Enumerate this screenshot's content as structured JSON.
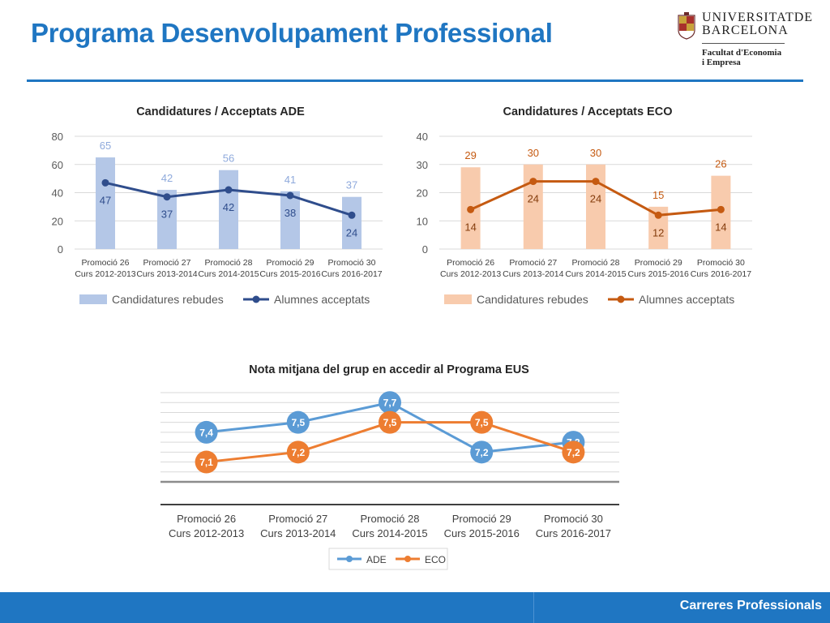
{
  "header": {
    "title": "Programa Desenvolupament Professional",
    "logo_line1": "UNIVERSITATDE",
    "logo_line2": "BARCELONA",
    "faculty_line1": "Facultat d'Economia",
    "faculty_line2": "i Empresa"
  },
  "footer": {
    "label": "Carreres Professionals"
  },
  "colors": {
    "brand": "#1f76c2",
    "ade_bar": "#b4c7e7",
    "ade_line": "#2f4d8c",
    "eco_bar": "#f8cbad",
    "eco_line": "#c55a11",
    "eus_ade": "#5b9bd5",
    "eus_eco": "#ed7d31"
  },
  "chart_data": [
    {
      "id": "ade",
      "type": "bar",
      "title": "Candidatures / Acceptats ADE",
      "categories": [
        [
          "Promoció 26",
          "Curs 2012-2013"
        ],
        [
          "Promoció 27",
          "Curs 2013-2014"
        ],
        [
          "Promoció 28",
          "Curs 2014-2015"
        ],
        [
          "Promoció 29",
          "Curs 2015-2016"
        ],
        [
          "Promoció 30",
          "Curs 2016-2017"
        ]
      ],
      "ylim": [
        0,
        80
      ],
      "yticks": [
        0,
        20,
        40,
        60,
        80
      ],
      "grid": true,
      "legend": "bottom",
      "series": [
        {
          "name": "Candidatures rebudes",
          "type": "bar",
          "values": [
            65,
            42,
            56,
            41,
            37
          ]
        },
        {
          "name": "Alumnes acceptats",
          "type": "line",
          "values": [
            47,
            37,
            42,
            38,
            24
          ]
        }
      ]
    },
    {
      "id": "eco",
      "type": "bar",
      "title": "Candidatures / Acceptats ECO",
      "categories": [
        [
          "Promoció 26",
          "Curs 2012-2013"
        ],
        [
          "Promoció 27",
          "Curs 2013-2014"
        ],
        [
          "Promoció 28",
          "Curs 2014-2015"
        ],
        [
          "Promoció 29",
          "Curs 2015-2016"
        ],
        [
          "Promoció 30",
          "Curs 2016-2017"
        ]
      ],
      "ylim": [
        0,
        40
      ],
      "yticks": [
        0,
        10,
        20,
        30,
        40
      ],
      "grid": true,
      "legend": "bottom",
      "series": [
        {
          "name": "Candidatures rebudes",
          "type": "bar",
          "values": [
            29,
            30,
            30,
            15,
            26
          ]
        },
        {
          "name": "Alumnes acceptats",
          "type": "line",
          "values": [
            14,
            24,
            24,
            12,
            14
          ]
        }
      ]
    },
    {
      "id": "eus",
      "type": "line",
      "title": "Nota mitjana del grup en accedir al Programa EUS",
      "categories": [
        [
          "Promoció 26",
          "Curs 2012-2013"
        ],
        [
          "Promoció 27",
          "Curs 2013-2014"
        ],
        [
          "Promoció 28",
          "Curs 2014-2015"
        ],
        [
          "Promoció 29",
          "Curs 2015-2016"
        ],
        [
          "Promoció 30",
          "Curs 2016-2017"
        ]
      ],
      "ylim": [
        6.9,
        7.8
      ],
      "grid": true,
      "legend": "bottom",
      "series": [
        {
          "name": "ADE",
          "values": [
            7.4,
            7.5,
            7.7,
            7.2,
            7.3
          ],
          "labels": [
            "7,4",
            "7,5",
            "7,7",
            "7,2",
            "7,3"
          ]
        },
        {
          "name": "ECO",
          "values": [
            7.1,
            7.2,
            7.5,
            7.5,
            7.2
          ],
          "labels": [
            "7,1",
            "7,2",
            "7,5",
            "7,5",
            "7,2"
          ]
        }
      ]
    }
  ]
}
